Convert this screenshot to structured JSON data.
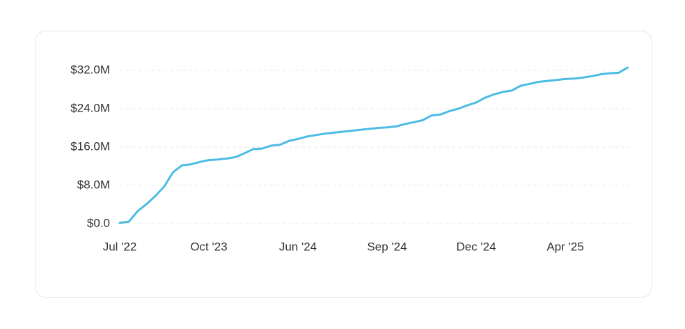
{
  "chart_data": {
    "type": "line",
    "categories": [
      "Jul '22",
      null,
      null,
      null,
      null,
      null,
      null,
      null,
      null,
      null,
      "Oct '23",
      null,
      null,
      null,
      null,
      null,
      null,
      null,
      null,
      null,
      "Jun '24",
      null,
      null,
      null,
      null,
      null,
      null,
      null,
      null,
      null,
      "Sep '24",
      null,
      null,
      null,
      null,
      null,
      null,
      null,
      null,
      null,
      "Dec '24",
      null,
      null,
      null,
      null,
      null,
      null,
      null,
      null,
      null,
      "Apr '25",
      null,
      null,
      null,
      null,
      null,
      null,
      null
    ],
    "values": [
      200000,
      400000,
      2600000,
      4100000,
      5800000,
      7800000,
      10800000,
      12200000,
      12400000,
      12900000,
      13300000,
      13400000,
      13600000,
      13900000,
      14700000,
      15600000,
      15700000,
      16300000,
      16500000,
      17300000,
      17700000,
      18200000,
      18500000,
      18800000,
      19000000,
      19200000,
      19400000,
      19600000,
      19800000,
      20000000,
      20100000,
      20300000,
      20800000,
      21200000,
      21600000,
      22600000,
      22800000,
      23500000,
      24000000,
      24700000,
      25300000,
      26300000,
      27000000,
      27500000,
      27800000,
      28800000,
      29200000,
      29600000,
      29800000,
      30000000,
      30200000,
      30300000,
      30500000,
      30800000,
      31200000,
      31400000,
      31500000,
      32600000
    ],
    "color": "#4cbce4",
    "ylim": [
      0,
      32000000
    ],
    "yticks": [
      {
        "value": 0,
        "label": "$0.0"
      },
      {
        "value": 8000000,
        "label": "$8.0M"
      },
      {
        "value": 16000000,
        "label": "$16.0M"
      },
      {
        "value": 24000000,
        "label": "$24.0M"
      },
      {
        "value": 32000000,
        "label": "$32.0M"
      }
    ],
    "grid": true
  }
}
